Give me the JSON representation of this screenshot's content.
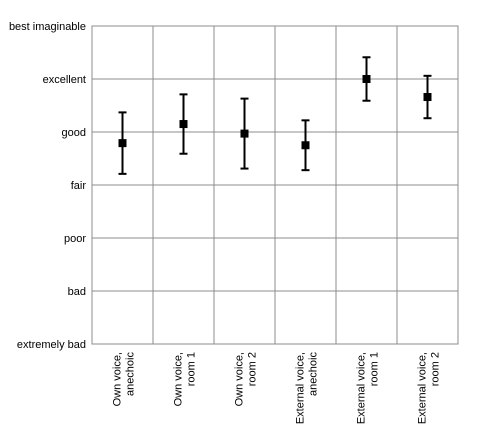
{
  "chart_data": {
    "type": "scatter",
    "title": "",
    "xlabel": "",
    "ylabel": "",
    "y_scale_labels": [
      "extremely bad",
      "bad",
      "poor",
      "fair",
      "good",
      "excellent",
      "best imaginable"
    ],
    "ylim": [
      0,
      6
    ],
    "grid": true,
    "categories": [
      [
        "Own voice,",
        "anechoic"
      ],
      [
        "Own voice,",
        "room 1"
      ],
      [
        "Own voice,",
        "room 2"
      ],
      [
        "External voice,",
        "anechoic"
      ],
      [
        "External voice,",
        "room 1"
      ],
      [
        "External voice,",
        "room 2"
      ]
    ],
    "series": [
      {
        "means": [
          3.79,
          4.15,
          3.97,
          3.75,
          5.0,
          4.66
        ],
        "lower": [
          3.21,
          3.59,
          3.31,
          3.28,
          4.59,
          4.26
        ],
        "upper": [
          4.37,
          4.71,
          4.63,
          4.22,
          5.41,
          5.06
        ]
      }
    ]
  }
}
